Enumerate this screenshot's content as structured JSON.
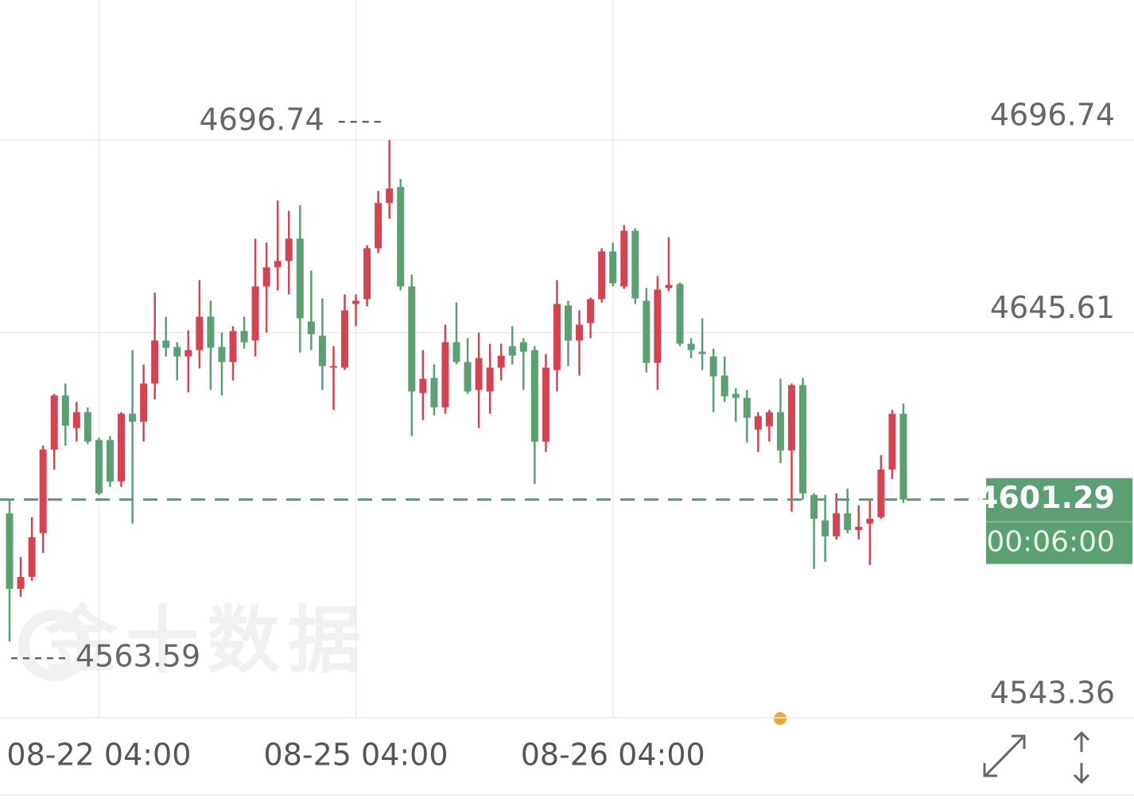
{
  "chart_data": {
    "type": "candlestick",
    "watermark": "金十数据",
    "countdown": "00:06:00",
    "up_color": "#d24452",
    "down_color": "#5b9f72",
    "ylim": [
      4543.36,
      4733.93
    ],
    "yticks": [
      4543.36,
      4645.61,
      4696.74
    ],
    "categories": [
      null,
      null,
      null,
      null,
      null,
      null,
      null,
      null,
      "08-22 04:00",
      null,
      null,
      null,
      null,
      null,
      null,
      null,
      null,
      null,
      null,
      null,
      null,
      null,
      null,
      null,
      null,
      null,
      null,
      null,
      null,
      null,
      null,
      "08-25 04:00",
      null,
      null,
      null,
      null,
      null,
      null,
      null,
      null,
      null,
      null,
      null,
      null,
      null,
      null,
      null,
      null,
      null,
      null,
      null,
      null,
      null,
      null,
      "08-26 04:00",
      null,
      null,
      null,
      null,
      null,
      null,
      null,
      null,
      null,
      null,
      null,
      null,
      null,
      null,
      null,
      null,
      null,
      null,
      null,
      null,
      null,
      null,
      null,
      null,
      null,
      null
    ],
    "ohlc": [
      [
        4597.65,
        4601.25,
        4563.59,
        4577.58
      ],
      [
        4577.58,
        4586.03,
        4575.47,
        4580.75
      ],
      [
        4580.75,
        4596.6,
        4579.69,
        4591.31
      ],
      [
        4592.37,
        4615.61,
        4587.09,
        4614.56
      ],
      [
        4614.56,
        4629.35,
        4609.27,
        4628.93
      ],
      [
        4628.93,
        4632.09,
        4615.61,
        4620.9
      ],
      [
        4620.26,
        4627.24,
        4616.67,
        4624.49
      ],
      [
        4624.49,
        4625.76,
        4616.04,
        4616.67
      ],
      [
        4617.1,
        4617.73,
        4602.51,
        4602.94
      ],
      [
        4617.1,
        4618.15,
        4604.63,
        4606.1
      ],
      [
        4606.1,
        4624.49,
        4604.63,
        4624.07
      ],
      [
        4624.07,
        4640.97,
        4594.91,
        4621.95
      ],
      [
        4621.95,
        4637.17,
        4616.67,
        4632.09
      ],
      [
        4632.09,
        4656.18,
        4627.87,
        4643.51
      ],
      [
        4643.51,
        4649.84,
        4639.28,
        4641.6
      ],
      [
        4641.81,
        4643.08,
        4632.94,
        4639.28
      ],
      [
        4639.28,
        4646.25,
        4629.77,
        4640.97
      ],
      [
        4640.97,
        4659.56,
        4636.11,
        4649.84
      ],
      [
        4649.84,
        4654.07,
        4630.41,
        4641.6
      ],
      [
        4641.81,
        4645.61,
        4628.93,
        4637.8
      ],
      [
        4637.8,
        4647.31,
        4632.94,
        4646.04
      ],
      [
        4646.04,
        4649.84,
        4641.39,
        4643.08
      ],
      [
        4643.51,
        4670.55,
        4639.28,
        4657.87
      ],
      [
        4657.87,
        4669.49,
        4645.61,
        4662.94
      ],
      [
        4662.94,
        4680.69,
        4656.81,
        4664.63
      ],
      [
        4664.63,
        4677.94,
        4655.76,
        4670.55
      ],
      [
        4670.55,
        4679.42,
        4640.33,
        4649.42
      ],
      [
        4648.57,
        4662.09,
        4640.97,
        4645.19
      ],
      [
        4644.77,
        4654.7,
        4630.41,
        4636.74
      ],
      [
        4636.32,
        4642.03,
        4625.12,
        4636.74
      ],
      [
        4636.32,
        4655.76,
        4635.69,
        4651.53
      ],
      [
        4653.22,
        4655.76,
        4647.31,
        4654.07
      ],
      [
        4654.49,
        4668.86,
        4652.59,
        4668.01
      ],
      [
        4668.01,
        4683.22,
        4666.74,
        4680.05
      ],
      [
        4680.05,
        4696.74,
        4675.83,
        4683.86
      ],
      [
        4684.28,
        4686.39,
        4656.81,
        4657.87
      ],
      [
        4657.87,
        4661.04,
        4618.15,
        4629.99
      ],
      [
        4629.56,
        4640.97,
        4622.37,
        4633.36
      ],
      [
        4633.57,
        4637.17,
        4623.64,
        4625.76
      ],
      [
        4625.76,
        4647.73,
        4624.07,
        4643.08
      ],
      [
        4643.08,
        4653.64,
        4637.17,
        4637.8
      ],
      [
        4637.8,
        4644.14,
        4629.35,
        4629.99
      ],
      [
        4630.41,
        4645.61,
        4620.26,
        4638.85
      ],
      [
        4629.99,
        4642.66,
        4624.07,
        4636.32
      ],
      [
        4636.32,
        4642.66,
        4632.94,
        4639.49
      ],
      [
        4642.03,
        4647.31,
        4637.17,
        4639.49
      ],
      [
        4643.08,
        4644.14,
        4630.41,
        4640.55
      ],
      [
        4640.97,
        4642.03,
        4605.47,
        4616.67
      ],
      [
        4616.67,
        4639.91,
        4613.92,
        4636.32
      ],
      [
        4635.69,
        4659.56,
        4629.99,
        4653.22
      ],
      [
        4652.8,
        4654.07,
        4636.74,
        4643.51
      ],
      [
        4643.51,
        4651.53,
        4634.21,
        4647.73
      ],
      [
        4648.15,
        4654.91,
        4644.14,
        4654.49
      ],
      [
        4654.49,
        4668.01,
        4653.64,
        4667.17
      ],
      [
        4667.17,
        4669.49,
        4657.87,
        4658.71
      ],
      [
        4657.87,
        4674.14,
        4657.24,
        4672.66
      ],
      [
        4672.66,
        4673.29,
        4653.22,
        4654.7
      ],
      [
        4654.07,
        4657.45,
        4635.05,
        4637.59
      ],
      [
        4637.59,
        4660.61,
        4630.41,
        4657.03
      ],
      [
        4657.45,
        4670.97,
        4656.6,
        4658.29
      ],
      [
        4658.5,
        4658.92,
        4642.03,
        4642.66
      ],
      [
        4642.66,
        4644.14,
        4638.85,
        4640.97
      ],
      [
        4640.55,
        4649.42,
        4635.69,
        4639.91
      ],
      [
        4639.28,
        4641.39,
        4624.49,
        4634
      ],
      [
        4634.21,
        4639.28,
        4627.24,
        4628.72
      ],
      [
        4629.35,
        4630.83,
        4621.95,
        4628.29
      ],
      [
        4628.29,
        4630.41,
        4616.46,
        4623.01
      ],
      [
        4619.84,
        4624.49,
        4613.92,
        4623.43
      ],
      [
        4620.69,
        4625.12,
        4616.67,
        4624.49
      ],
      [
        4624.49,
        4633.36,
        4610.96,
        4614.35
      ],
      [
        4614.35,
        4632.09,
        4598.08,
        4631.67
      ],
      [
        4631.67,
        4633.57,
        4601.25,
        4602.94
      ],
      [
        4602.51,
        4602.94,
        4582.86,
        4596.18
      ],
      [
        4595.75,
        4602.51,
        4584.81,
        4591.53
      ],
      [
        4591.53,
        4602.94,
        4590.68,
        4597.65
      ],
      [
        4597.65,
        4604.2,
        4592.37,
        4593.21
      ],
      [
        4593.21,
        4599.77,
        4590.68,
        4594.06
      ],
      [
        4594.91,
        4601.25,
        4583.92,
        4596.18
      ],
      [
        4596.6,
        4613.08,
        4596.18,
        4609.27
      ],
      [
        4609.27,
        4625.12,
        4606.74,
        4624.07
      ],
      [
        4624.07,
        4626.81,
        4600.4,
        4601.29
      ]
    ]
  }
}
